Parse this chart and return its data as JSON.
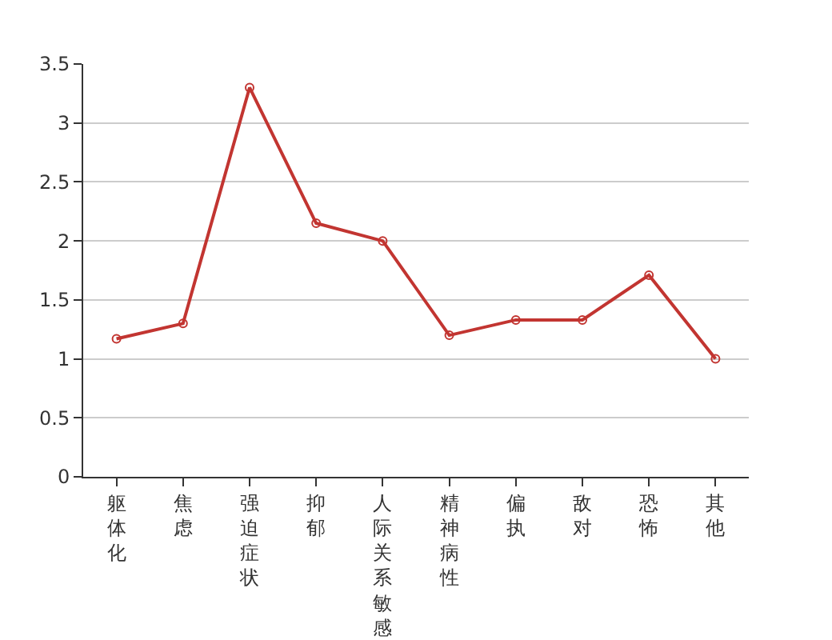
{
  "chart_data": {
    "type": "line",
    "categories": [
      "躯体化",
      "焦虑",
      "强迫症状",
      "抑郁",
      "人际关系敏感",
      "精神病性",
      "偏执",
      "敌对",
      "恐怖",
      "其他"
    ],
    "series": [
      {
        "color": "#c23531",
        "values": [
          1.17,
          1.3,
          3.3,
          2.15,
          2.0,
          1.2,
          1.33,
          1.33,
          1.71,
          1.0
        ]
      }
    ],
    "ylim": [
      0,
      3.5
    ],
    "yticks": [
      0,
      0.5,
      1,
      1.5,
      2,
      2.5,
      3,
      3.5
    ],
    "grid": "y",
    "marker": "circle",
    "line_style": "solid"
  }
}
